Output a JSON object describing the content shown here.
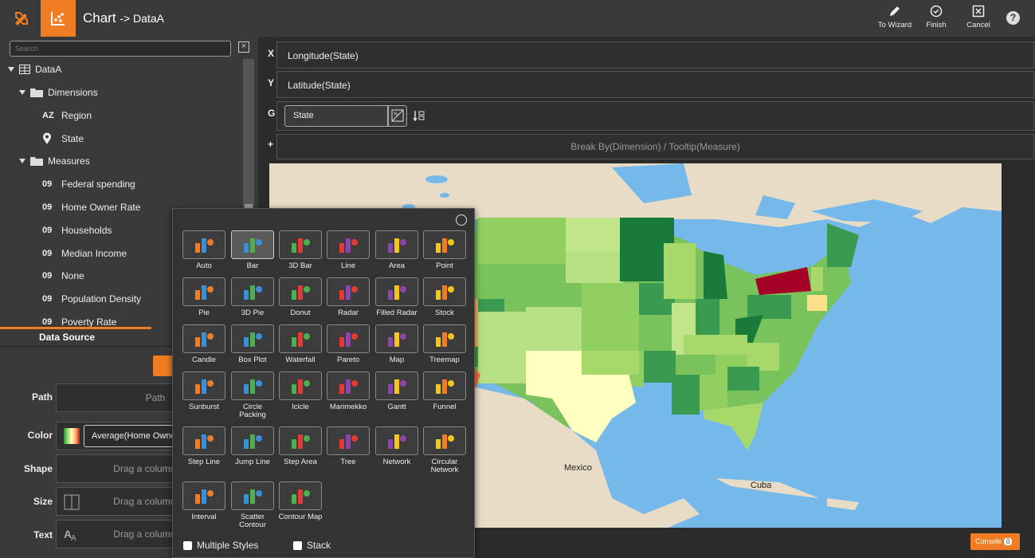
{
  "app": {
    "title": "Chart",
    "subtitle": "-> DataA"
  },
  "toolbar": {
    "to_wizard": "To Wizard",
    "finish": "Finish",
    "cancel": "Cancel",
    "help": "?"
  },
  "sidebar": {
    "search_placeholder": "Search",
    "root": "DataA",
    "dimensions_label": "Dimensions",
    "dimensions": [
      {
        "badge": "AZ",
        "label": "Region"
      },
      {
        "badge": "pin",
        "label": "State"
      }
    ],
    "measures_label": "Measures",
    "measures": [
      {
        "badge": "09",
        "label": "Federal spending"
      },
      {
        "badge": "09",
        "label": "Home Owner Rate"
      },
      {
        "badge": "09",
        "label": "Households"
      },
      {
        "badge": "09",
        "label": "Median Income"
      },
      {
        "badge": "09",
        "label": "None"
      },
      {
        "badge": "09",
        "label": "Population Density"
      },
      {
        "badge": "09",
        "label": "Poverty Rate"
      }
    ],
    "data_source_tab": "Data Source"
  },
  "properties": {
    "path_label": "Path",
    "path_placeholder": "Path",
    "color_label": "Color",
    "color_value": "Average(Home Owner Rate)",
    "shape_label": "Shape",
    "shape_placeholder": "Drag a column here",
    "size_label": "Size",
    "size_placeholder": "Drag a column here",
    "text_label": "Text",
    "text_placeholder": "Drag a column here"
  },
  "bindings": {
    "x_label": "X",
    "x_value": "Longitude(State)",
    "y_label": "Y",
    "y_value": "Latitude(State)",
    "g_label": "G",
    "g_value": "State",
    "plus_label": "+",
    "breakby_placeholder": "Break By(Dimension) / Tooltip(Measure)"
  },
  "map": {
    "label_mexico": "Mexico",
    "label_cuba": "Cuba",
    "ocean_color": "#74b9ea",
    "land_color": "#e8dcc6"
  },
  "console": {
    "label": "Console",
    "count": "0"
  },
  "chart_picker": {
    "types": [
      {
        "label": "Auto",
        "icon": "auto-icon"
      },
      {
        "label": "Bar",
        "icon": "bar-icon",
        "selected": true
      },
      {
        "label": "3D Bar",
        "icon": "3d-bar-icon"
      },
      {
        "label": "Line",
        "icon": "line-icon"
      },
      {
        "label": "Area",
        "icon": "area-icon"
      },
      {
        "label": "Point",
        "icon": "point-icon"
      },
      {
        "label": "Pie",
        "icon": "pie-icon"
      },
      {
        "label": "3D Pie",
        "icon": "3d-pie-icon"
      },
      {
        "label": "Donut",
        "icon": "donut-icon"
      },
      {
        "label": "Radar",
        "icon": "radar-icon"
      },
      {
        "label": "Filled Radar",
        "icon": "filled-radar-icon"
      },
      {
        "label": "Stock",
        "icon": "stock-icon"
      },
      {
        "label": "Candle",
        "icon": "candle-icon"
      },
      {
        "label": "Box Plot",
        "icon": "box-plot-icon"
      },
      {
        "label": "Waterfall",
        "icon": "waterfall-icon"
      },
      {
        "label": "Pareto",
        "icon": "pareto-icon"
      },
      {
        "label": "Map",
        "icon": "map-icon"
      },
      {
        "label": "Treemap",
        "icon": "treemap-icon"
      },
      {
        "label": "Sunburst",
        "icon": "sunburst-icon"
      },
      {
        "label": "Circle Packing",
        "icon": "circle-packing-icon"
      },
      {
        "label": "Icicle",
        "icon": "icicle-icon"
      },
      {
        "label": "Marimekko",
        "icon": "marimekko-icon"
      },
      {
        "label": "Gantt",
        "icon": "gantt-icon"
      },
      {
        "label": "Funnel",
        "icon": "funnel-icon"
      },
      {
        "label": "Step Line",
        "icon": "step-line-icon"
      },
      {
        "label": "Jump Line",
        "icon": "jump-line-icon"
      },
      {
        "label": "Step Area",
        "icon": "step-area-icon"
      },
      {
        "label": "Tree",
        "icon": "tree-icon"
      },
      {
        "label": "Network",
        "icon": "network-icon"
      },
      {
        "label": "Circular Network",
        "icon": "circular-network-icon"
      },
      {
        "label": "Interval",
        "icon": "interval-icon"
      },
      {
        "label": "Scatter Contour",
        "icon": "scatter-contour-icon"
      },
      {
        "label": "Contour Map",
        "icon": "contour-map-icon"
      }
    ],
    "multiple_styles_label": "Multiple Styles",
    "stack_label": "Stack"
  }
}
